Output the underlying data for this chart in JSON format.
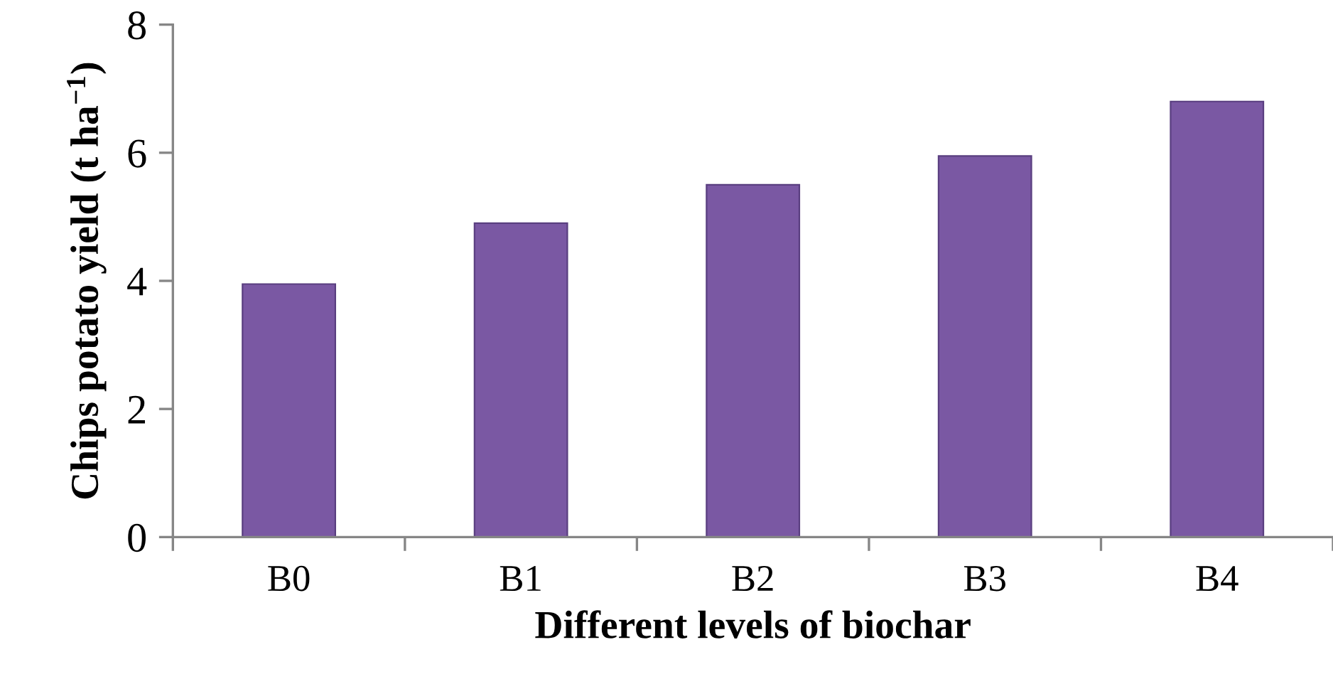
{
  "chart_data": {
    "type": "bar",
    "xlabel": "Different levels of biochar",
    "ylabel": "Chips potato yield (t ha$^{−1}$)",
    "categories": [
      "B0",
      "B1",
      "B2",
      "B3",
      "B4"
    ],
    "values": [
      3.95,
      4.9,
      5.5,
      5.95,
      6.8
    ],
    "color": "#7a58a3",
    "ylim": [
      0,
      8
    ],
    "yticks": [
      0,
      2,
      4,
      6,
      8
    ]
  }
}
